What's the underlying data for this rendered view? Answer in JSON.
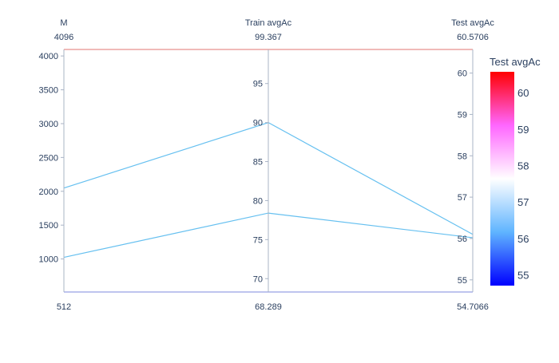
{
  "chart_data": {
    "type": "parallel-coordinates",
    "dimensions": [
      {
        "label": "M",
        "range": [
          512,
          4096
        ],
        "range_labels": {
          "min": "512",
          "max": "4096"
        },
        "ticks": [
          1000,
          1500,
          2000,
          2500,
          3000,
          3500,
          4000
        ],
        "values": [
          1024,
          2048
        ]
      },
      {
        "label": "Train avgAc",
        "range": [
          68.289,
          99.367
        ],
        "range_labels": {
          "min": "68.289",
          "max": "99.367"
        },
        "ticks": [
          70,
          75,
          80,
          85,
          90,
          95
        ],
        "values": [
          78.4,
          90.0
        ]
      },
      {
        "label": "Test avgAc",
        "range": [
          54.7066,
          60.5706
        ],
        "range_labels": {
          "min": "54.7066",
          "max": "60.5706"
        },
        "ticks": [
          55,
          56,
          57,
          58,
          59,
          60
        ],
        "values": [
          56.02,
          56.1
        ]
      }
    ],
    "line_color": "#66c0f0",
    "colorbar": {
      "title": "Test avgAc",
      "ticks": [
        55,
        56,
        57,
        58,
        59,
        60
      ],
      "range": [
        54.7066,
        60.5706
      ],
      "colors": [
        "#0000ff",
        "#5fb4ff",
        "#ffffff",
        "#ff66ff",
        "#ff0000"
      ]
    }
  }
}
